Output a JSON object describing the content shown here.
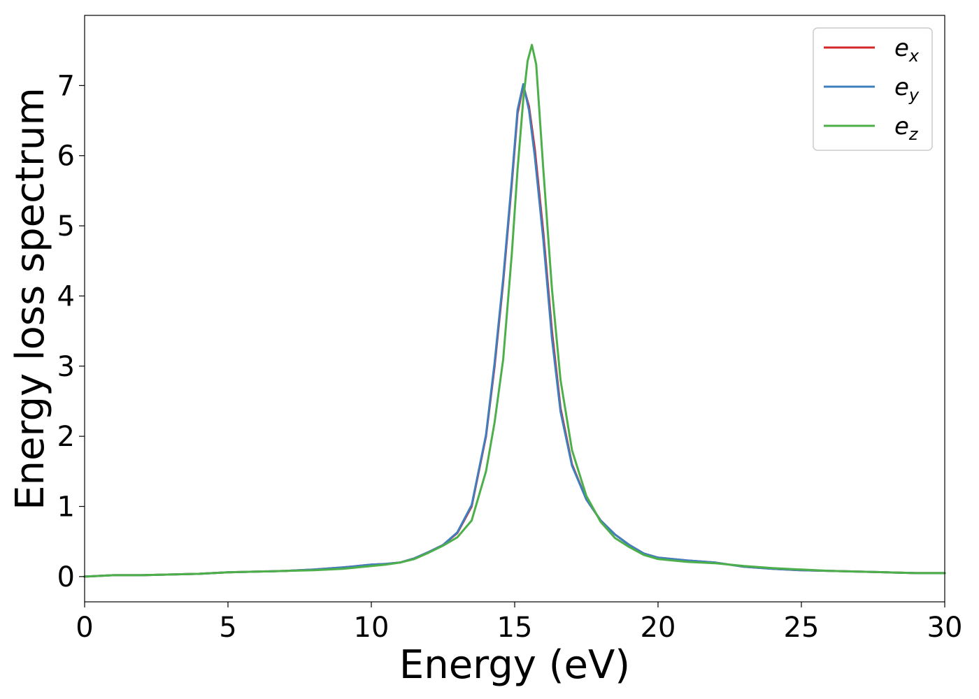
{
  "chart_data": {
    "type": "line",
    "title": "",
    "xlabel": "Energy (eV)",
    "ylabel": "Energy loss spectrum",
    "xlim": [
      0,
      30
    ],
    "ylim": [
      -0.36,
      8.0
    ],
    "xticks": [
      0,
      5,
      10,
      15,
      20,
      25,
      30
    ],
    "yticks": [
      0,
      1,
      2,
      3,
      4,
      5,
      6,
      7
    ],
    "grid": false,
    "legend": "top-right",
    "series": [
      {
        "name": "e",
        "subscript": "x",
        "color": "#d62728",
        "x": [
          0,
          1,
          2,
          3,
          4,
          5,
          6,
          7,
          8,
          9,
          10,
          10.5,
          11,
          11.5,
          12,
          12.5,
          13,
          13.5,
          14,
          14.3,
          14.6,
          14.9,
          15.1,
          15.3,
          15.5,
          15.7,
          16.0,
          16.3,
          16.6,
          17.0,
          17.5,
          18,
          18.5,
          19,
          19.5,
          20,
          21,
          22,
          23,
          24,
          25,
          26,
          27,
          28,
          29,
          30
        ],
        "y": [
          0.0,
          0.02,
          0.02,
          0.03,
          0.04,
          0.06,
          0.07,
          0.08,
          0.1,
          0.13,
          0.17,
          0.18,
          0.2,
          0.26,
          0.35,
          0.45,
          0.62,
          1.0,
          2.0,
          3.0,
          4.2,
          5.6,
          6.6,
          7.0,
          6.7,
          6.1,
          4.9,
          3.5,
          2.4,
          1.6,
          1.1,
          0.8,
          0.6,
          0.45,
          0.33,
          0.27,
          0.23,
          0.2,
          0.14,
          0.11,
          0.09,
          0.08,
          0.07,
          0.06,
          0.05,
          0.05
        ]
      },
      {
        "name": "e",
        "subscript": "y",
        "color": "#3f7fbf",
        "x": [
          0,
          1,
          2,
          3,
          4,
          5,
          6,
          7,
          8,
          9,
          10,
          10.5,
          11,
          11.5,
          12,
          12.5,
          13,
          13.5,
          14,
          14.3,
          14.6,
          14.9,
          15.1,
          15.3,
          15.5,
          15.7,
          16.0,
          16.3,
          16.6,
          17.0,
          17.5,
          18,
          18.5,
          19,
          19.5,
          20,
          21,
          22,
          23,
          24,
          25,
          26,
          27,
          28,
          29,
          30
        ],
        "y": [
          0.0,
          0.02,
          0.02,
          0.03,
          0.04,
          0.06,
          0.07,
          0.08,
          0.1,
          0.13,
          0.17,
          0.18,
          0.2,
          0.26,
          0.35,
          0.45,
          0.63,
          1.02,
          2.02,
          3.05,
          4.25,
          5.65,
          6.65,
          7.02,
          6.65,
          6.0,
          4.8,
          3.4,
          2.35,
          1.58,
          1.1,
          0.8,
          0.6,
          0.45,
          0.33,
          0.27,
          0.23,
          0.2,
          0.14,
          0.11,
          0.09,
          0.08,
          0.07,
          0.06,
          0.05,
          0.05
        ]
      },
      {
        "name": "e",
        "subscript": "z",
        "color": "#4daf4a",
        "x": [
          0,
          1,
          2,
          3,
          4,
          5,
          6,
          7,
          8,
          9,
          10,
          10.5,
          11,
          11.5,
          12,
          12.5,
          13,
          13.5,
          14,
          14.3,
          14.6,
          14.9,
          15.1,
          15.3,
          15.45,
          15.6,
          15.75,
          16.0,
          16.3,
          16.6,
          17.0,
          17.5,
          18,
          18.5,
          19,
          19.5,
          20,
          21,
          22,
          23,
          24,
          25,
          26,
          27,
          28,
          29,
          30
        ],
        "y": [
          0.0,
          0.02,
          0.02,
          0.03,
          0.04,
          0.06,
          0.07,
          0.08,
          0.09,
          0.11,
          0.15,
          0.17,
          0.2,
          0.25,
          0.34,
          0.44,
          0.56,
          0.8,
          1.5,
          2.2,
          3.1,
          4.6,
          5.8,
          6.8,
          7.35,
          7.58,
          7.3,
          5.8,
          4.1,
          2.8,
          1.8,
          1.15,
          0.78,
          0.55,
          0.42,
          0.31,
          0.25,
          0.21,
          0.19,
          0.15,
          0.12,
          0.1,
          0.08,
          0.07,
          0.06,
          0.05,
          0.05
        ]
      }
    ]
  }
}
